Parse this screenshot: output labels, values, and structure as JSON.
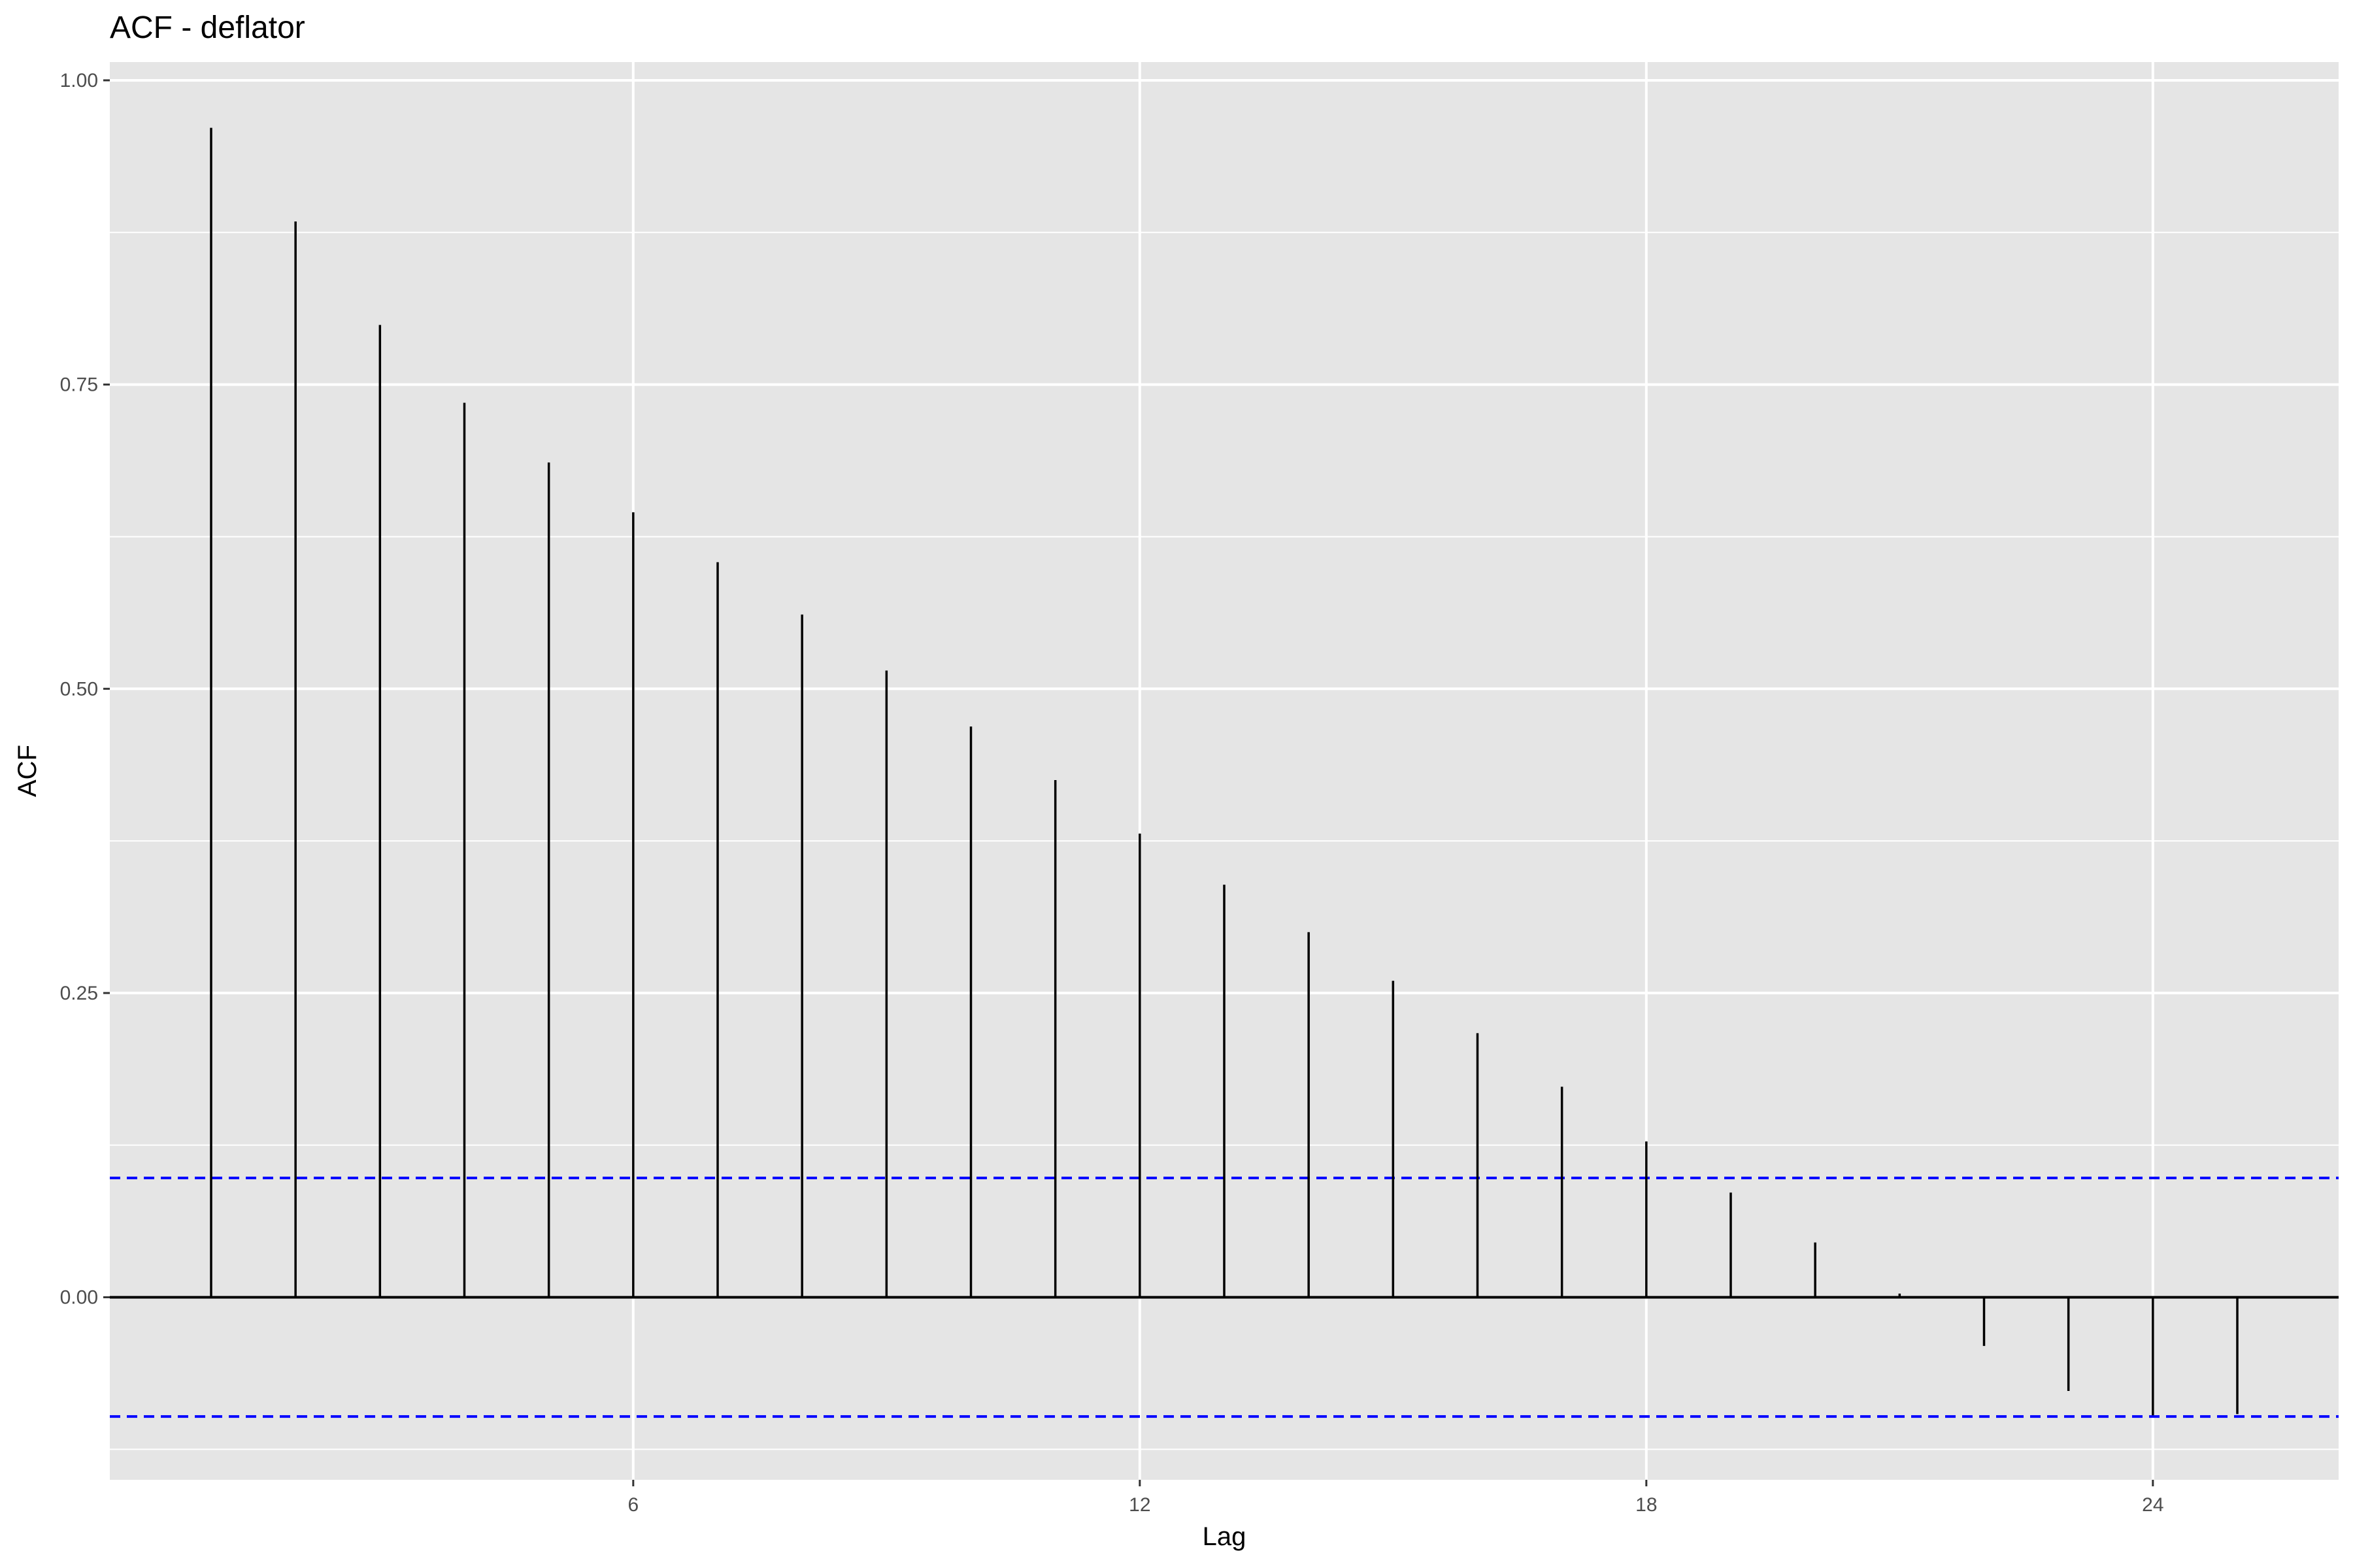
{
  "chart_data": {
    "type": "bar",
    "title": "ACF - deflator",
    "xlabel": "Lag",
    "ylabel": "ACF",
    "lags": [
      1,
      2,
      3,
      4,
      5,
      6,
      7,
      8,
      9,
      10,
      11,
      12,
      13,
      14,
      15,
      16,
      17,
      18,
      19,
      20,
      21,
      22,
      23,
      24,
      25
    ],
    "values": [
      0.961,
      0.884,
      0.799,
      0.735,
      0.686,
      0.645,
      0.604,
      0.561,
      0.515,
      0.469,
      0.425,
      0.381,
      0.339,
      0.3,
      0.26,
      0.217,
      0.173,
      0.128,
      0.086,
      0.045,
      0.003,
      -0.04,
      -0.077,
      -0.097,
      -0.096
    ],
    "confidence_limit": 0.098,
    "xlim": [
      -0.2,
      26.2
    ],
    "ylim": [
      -0.15,
      1.015
    ],
    "x_ticks": [
      6,
      12,
      18,
      24
    ],
    "x_tick_labels": [
      "6",
      "12",
      "18",
      "24"
    ],
    "y_ticks": [
      0,
      0.25,
      0.5,
      0.75,
      1.0
    ],
    "y_tick_labels": [
      "0.00",
      "0.25",
      "0.50",
      "0.75",
      "1.00"
    ],
    "grid": true,
    "colors": {
      "panel_background": "#e5e5e5",
      "grid": "#ffffff",
      "bars": "#000000",
      "confidence_line": "#0000ff",
      "tick_labels": "#4d4d4d"
    }
  }
}
